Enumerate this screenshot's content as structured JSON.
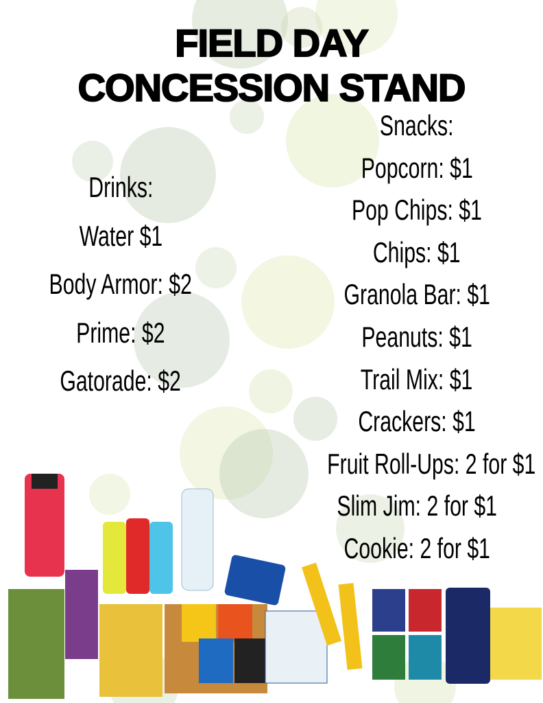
{
  "header": {
    "title_lines": [
      "FIELD DAY",
      "CONCESSION STAND"
    ]
  },
  "drinks": {
    "heading": "Drinks:",
    "items": [
      "Water $1",
      "Body Armor: $2",
      "Prime: $2",
      "Gatorade: $2"
    ]
  },
  "snacks": {
    "heading": "Snacks:",
    "items": [
      "Popcorn: $1",
      "Pop Chips: $1",
      "Chips: $1",
      "Granola Bar: $1",
      "Peanuts: $1",
      "Trail Mix: $1",
      "Crackers: $1",
      "Fruit Roll-Ups: 2 for $1",
      "Slim Jim: 2 for $1",
      "Cookie: 2 for $1"
    ]
  }
}
